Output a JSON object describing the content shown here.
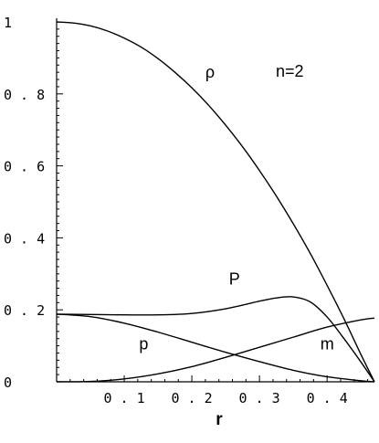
{
  "chart_data": {
    "type": "line",
    "title": "",
    "xlabel": "r",
    "ylabel": "",
    "annotation": "n=2",
    "xlim": [
      0,
      0.47
    ],
    "ylim": [
      0,
      1
    ],
    "grid": false,
    "x_ticks": [
      {
        "value": 0.1,
        "label": "0 . 1"
      },
      {
        "value": 0.2,
        "label": "0 . 2"
      },
      {
        "value": 0.3,
        "label": "0 . 3"
      },
      {
        "value": 0.4,
        "label": "0 . 4"
      }
    ],
    "y_ticks": [
      {
        "value": 0,
        "label": "0"
      },
      {
        "value": 0.2,
        "label": "0 . 2"
      },
      {
        "value": 0.4,
        "label": "0 . 4"
      },
      {
        "value": 0.6,
        "label": "0 . 6"
      },
      {
        "value": 0.8,
        "label": "0 . 8"
      },
      {
        "value": 1,
        "label": "1"
      }
    ],
    "series": [
      {
        "name": "ρ",
        "label_at": [
          0.22,
          0.845
        ],
        "x": [
          0,
          0.025,
          0.05,
          0.075,
          0.1,
          0.125,
          0.15,
          0.175,
          0.2,
          0.225,
          0.25,
          0.275,
          0.3,
          0.325,
          0.35,
          0.375,
          0.4,
          0.425,
          0.45,
          0.47
        ],
        "y": [
          1,
          0.997,
          0.989,
          0.975,
          0.955,
          0.93,
          0.898,
          0.86,
          0.817,
          0.768,
          0.713,
          0.653,
          0.587,
          0.516,
          0.439,
          0.357,
          0.268,
          0.175,
          0.076,
          0.0
        ]
      },
      {
        "name": "P",
        "label_at": [
          0.255,
          0.27
        ],
        "x": [
          0,
          0.05,
          0.1,
          0.15,
          0.2,
          0.25,
          0.3,
          0.325,
          0.35,
          0.375,
          0.4,
          0.425,
          0.45,
          0.47
        ],
        "y": [
          0.188,
          0.187,
          0.186,
          0.186,
          0.19,
          0.203,
          0.224,
          0.233,
          0.236,
          0.222,
          0.18,
          0.12,
          0.055,
          0.0
        ]
      },
      {
        "name": "p",
        "label_at": [
          0.122,
          0.09
        ],
        "x": [
          0,
          0.05,
          0.1,
          0.15,
          0.2,
          0.25,
          0.3,
          0.35,
          0.4,
          0.45,
          0.47
        ],
        "y": [
          0.188,
          0.181,
          0.163,
          0.138,
          0.11,
          0.082,
          0.056,
          0.032,
          0.014,
          0.003,
          0.0
        ]
      },
      {
        "name": "m",
        "label_at": [
          0.39,
          0.09
        ],
        "x": [
          0,
          0.05,
          0.1,
          0.15,
          0.2,
          0.25,
          0.3,
          0.35,
          0.4,
          0.45,
          0.47
        ],
        "y": [
          0.0,
          0.001,
          0.008,
          0.022,
          0.042,
          0.068,
          0.096,
          0.124,
          0.152,
          0.172,
          0.177
        ]
      }
    ]
  }
}
